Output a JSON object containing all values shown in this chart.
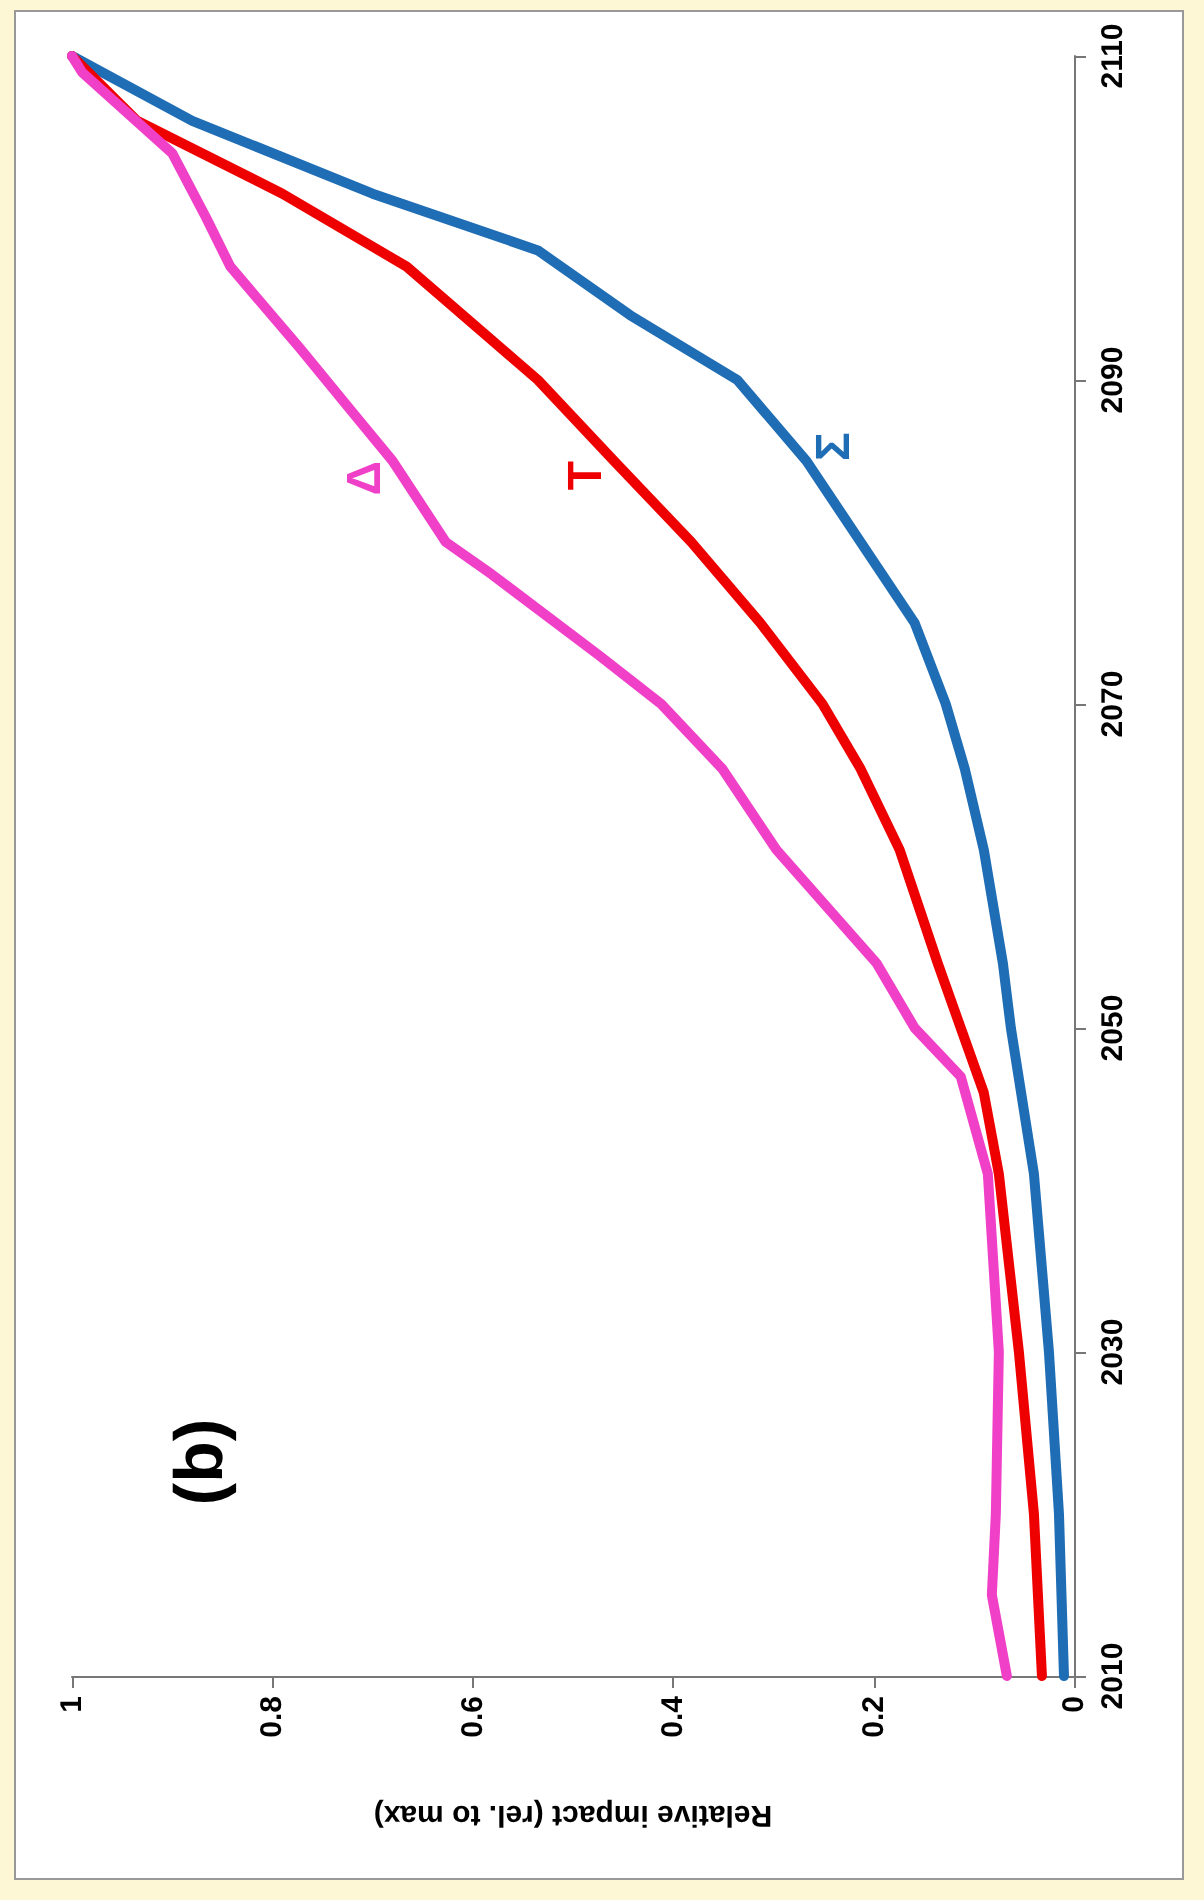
{
  "chart_data": {
    "type": "line",
    "xlabel": "Relative impact (rel. to max)",
    "annotations": [
      "(b)"
    ],
    "xlim": [
      1,
      0
    ],
    "xticks": [
      0,
      0.2,
      0.4,
      0.6,
      0.8,
      1
    ],
    "ylim": [
      2010,
      2110
    ],
    "yticks": [
      2010,
      2030,
      2050,
      2070,
      2090,
      2110
    ],
    "grid": false,
    "legend": false,
    "marker": "none",
    "line_style": "solid",
    "series": [
      {
        "name": "Σ",
        "color": "#1f6db4",
        "values": [
          2010,
          2020,
          2030,
          2041,
          2050,
          2054,
          2061,
          2066,
          2070,
          2075,
          2080,
          2085,
          2090,
          2094,
          2098,
          2101.5,
          2106,
          2110
        ],
        "x": [
          0.01,
          0.015,
          0.025,
          0.04,
          0.063,
          0.071,
          0.09,
          0.109,
          0.128,
          0.159,
          0.213,
          0.267,
          0.336,
          0.443,
          0.535,
          0.7,
          0.88,
          1
        ]
      },
      {
        "name": "T",
        "color": "#ee0000",
        "values": [
          2010,
          2020,
          2030,
          2041,
          2046,
          2050,
          2054,
          2061,
          2066,
          2070,
          2075,
          2080,
          2085,
          2090,
          2097,
          2101.5,
          2106,
          2110
        ],
        "x": [
          0.032,
          0.04,
          0.055,
          0.075,
          0.09,
          0.113,
          0.136,
          0.174,
          0.213,
          0.251,
          0.313,
          0.382,
          0.459,
          0.535,
          0.666,
          0.79,
          0.935,
          1
        ]
      },
      {
        "name": "Δ",
        "color": "#f040c8",
        "values": [
          2010,
          2015,
          2020,
          2030,
          2041,
          2047,
          2050,
          2054,
          2061,
          2066,
          2070,
          2073,
          2078,
          2080,
          2085,
          2088,
          2092,
          2097,
          2100,
          2104,
          2109,
          2110
        ],
        "x": [
          0.067,
          0.082,
          0.078,
          0.075,
          0.086,
          0.113,
          0.159,
          0.197,
          0.297,
          0.351,
          0.412,
          0.474,
          0.581,
          0.627,
          0.68,
          0.72,
          0.773,
          0.842,
          0.866,
          0.9,
          0.99,
          1
        ]
      }
    ]
  }
}
